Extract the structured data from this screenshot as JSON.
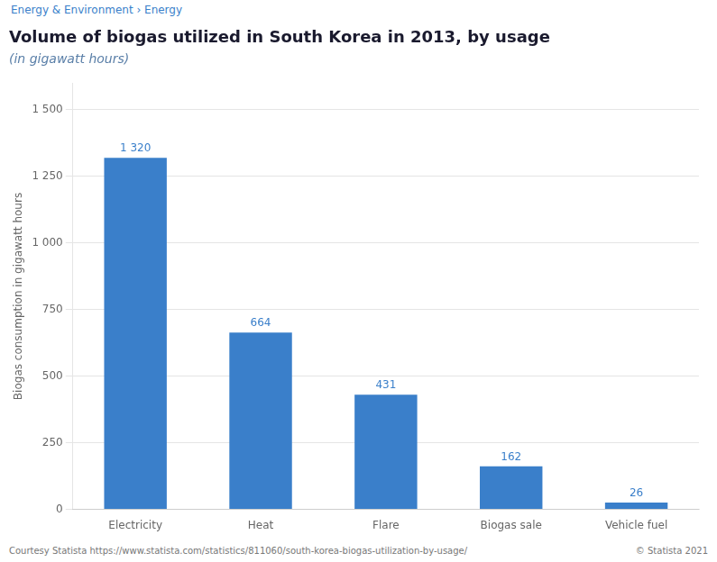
{
  "chart_data": {
    "type": "bar",
    "breadcrumb": "Energy & Environment › Energy",
    "title": "Volume of biogas utilized in South Korea in 2013, by usage",
    "subtitle": "(in gigawatt hours)",
    "ylabel": "Biogas consumption in gigawatt hours",
    "footer_left": "Courtesy Statista https://www.statista.com/statistics/811060/south-korea-biogas-utilization-by-usage/",
    "footer_right": "© Statista 2021",
    "categories": [
      "Electricity",
      "Heat",
      "Flare",
      "Biogas sale",
      "Vehicle fuel"
    ],
    "values": [
      1320,
      664,
      431,
      162,
      26
    ],
    "value_labels": [
      "1 320",
      "664",
      "431",
      "162",
      "26"
    ],
    "color": "#3a7fca",
    "ylim": [
      0,
      1600
    ],
    "yticks": [
      0,
      250,
      500,
      750,
      {
        "value": 1000,
        "label": "1 000"
      },
      {
        "value": 1250,
        "label": "1 250"
      },
      {
        "value": 1500,
        "label": "1 500"
      }
    ],
    "grid": true,
    "data_labels": true
  }
}
